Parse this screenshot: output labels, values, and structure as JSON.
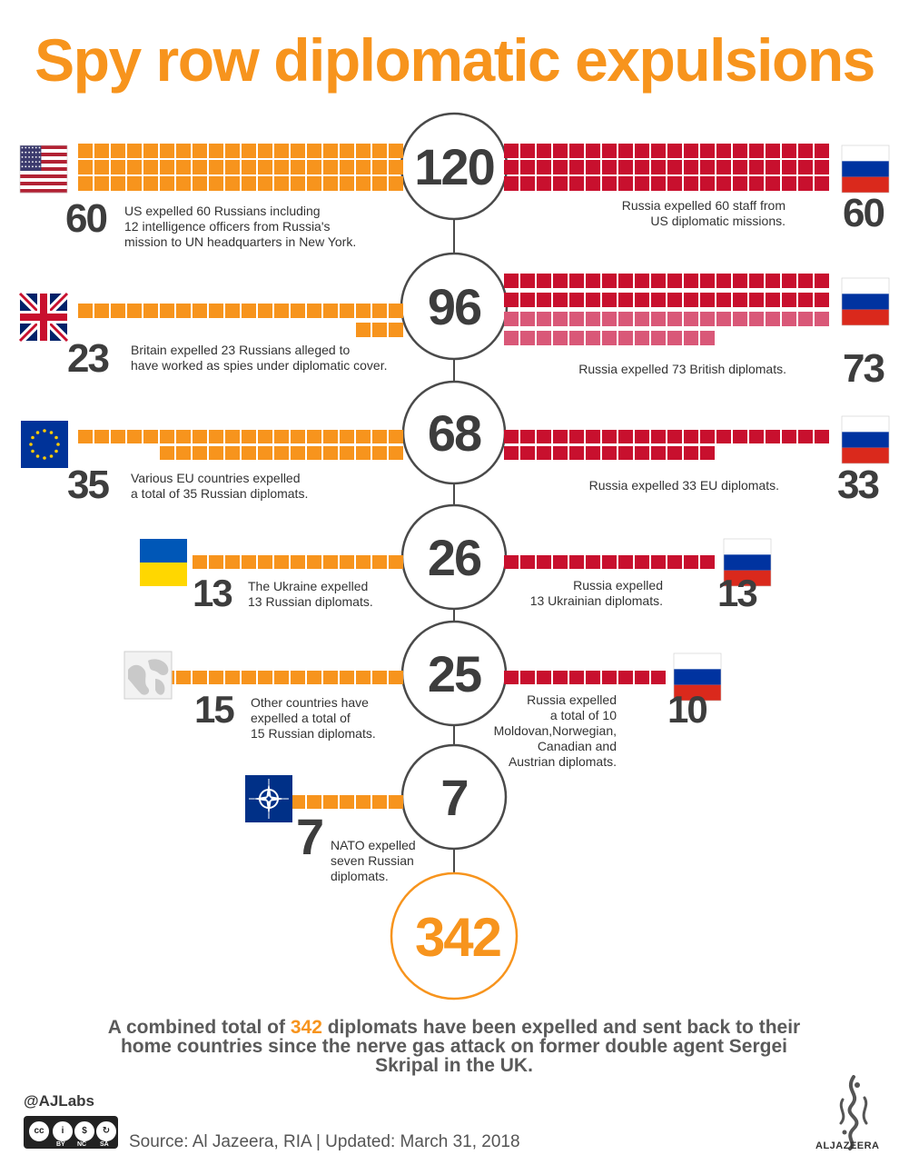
{
  "title": "Spy row diplomatic expulsions",
  "colors": {
    "west": "#f7941d",
    "russia": "#c8102e",
    "russia_light": "#d95878",
    "circle_stroke": "#4a4a4a",
    "total_ring": "#f7941d"
  },
  "chart_data": {
    "type": "waffle",
    "unit": "diplomats",
    "rows": [
      {
        "total": "120",
        "left": {
          "flag": "us-flag",
          "value": 60,
          "label": "60",
          "text": [
            "US expelled 60 Russians including",
            "12 intelligence officers from Russia's",
            "mission to UN headquarters in New York."
          ]
        },
        "right": {
          "flag": "russia-flag",
          "value": 60,
          "label": "60",
          "text": [
            "Russia expelled 60 staff from",
            "US diplomatic missions."
          ]
        }
      },
      {
        "total": "96",
        "left": {
          "flag": "uk-flag",
          "value": 23,
          "label": "23",
          "text": [
            "Britain expelled 23 Russians alleged to",
            "have worked as spies under diplomatic cover."
          ]
        },
        "right": {
          "flag": "russia-flag",
          "value": 73,
          "label": "73",
          "text": [
            "Russia expelled 73 British diplomats."
          ]
        }
      },
      {
        "total": "68",
        "left": {
          "flag": "eu-flag",
          "value": 35,
          "label": "35",
          "text": [
            "Various EU countries expelled",
            "a total of 35 Russian diplomats."
          ]
        },
        "right": {
          "flag": "russia-flag",
          "value": 33,
          "label": "33",
          "text": [
            "Russia expelled 33 EU diplomats."
          ]
        }
      },
      {
        "total": "26",
        "left": {
          "flag": "ukraine-flag",
          "value": 13,
          "label": "13",
          "text": [
            "The Ukraine expelled",
            "13 Russian diplomats."
          ]
        },
        "right": {
          "flag": "russia-flag",
          "value": 13,
          "label": "13",
          "text": [
            "Russia expelled",
            "13 Ukrainian diplomats."
          ]
        }
      },
      {
        "total": "25",
        "left": {
          "flag": "globe-icon",
          "value": 15,
          "label": "15",
          "text": [
            "Other countries have",
            "expelled a total of",
            "15 Russian diplomats."
          ]
        },
        "right": {
          "flag": "russia-flag",
          "value": 10,
          "label": "10",
          "text": [
            "Russia expelled",
            "a total of 10",
            "Moldovan,Norwegian,",
            "Canadian and",
            "Austrian diplomats."
          ]
        }
      },
      {
        "total": "7",
        "left": {
          "flag": "nato-flag",
          "value": 7,
          "label": "7",
          "text": [
            "NATO expelled",
            "seven Russian",
            "diplomats."
          ]
        },
        "right": null
      }
    ],
    "grand_total": "342"
  },
  "summary": {
    "before": "A combined total of ",
    "highlight": "342",
    "after": " diplomats have been expelled and sent back to their home countries since the nerve gas attack on former double agent Sergei Skripal in the UK."
  },
  "footer": {
    "handle": "@AJLabs",
    "source": "Source: Al Jazeera, RIA  |  Updated: March 31, 2018",
    "license_labels": [
      "BY",
      "NC",
      "SA"
    ],
    "logo_text": "ALJAZEERA"
  }
}
